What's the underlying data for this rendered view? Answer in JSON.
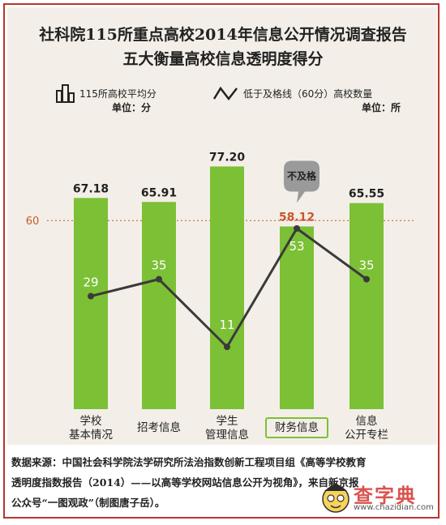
{
  "title_line1": "社科院115所重点高校2014年信息公开情况调查报告",
  "title_line2": "五大衡量高校信息透明度得分",
  "legend": {
    "bar_label": "115所高校平均分",
    "bar_unit": "单位：分",
    "line_label": "低于及格线（60分）高校数量",
    "line_unit": "单位：所",
    "bar_icon": "bar-chart-icon",
    "line_icon": "zigzag-line-icon"
  },
  "threshold_label": "60",
  "callout_text": "不及格",
  "colors": {
    "bar": "#7cc036",
    "line": "#3a3a3a",
    "threshold": "#c9572c",
    "border": "#b9342f",
    "callout": "#9a9a9a"
  },
  "chart_data": {
    "type": "bar",
    "categories": [
      "学校基本情况",
      "招考信息",
      "学生管理信息",
      "财务信息",
      "信息公开专栏"
    ],
    "category_lines": [
      [
        "学校",
        "基本情况"
      ],
      [
        "招考信息"
      ],
      [
        "学生",
        "管理信息"
      ],
      [
        "财务信息"
      ],
      [
        "信息",
        "公开专栏"
      ]
    ],
    "highlight_category": 3,
    "series": [
      {
        "name": "115所高校平均分",
        "type": "bar",
        "values": [
          67.18,
          65.91,
          77.2,
          58.12,
          65.55
        ],
        "labels": [
          "67.18",
          "65.91",
          "77.20",
          "58.12",
          "65.55"
        ]
      },
      {
        "name": "低于及格线（60分）高校数量",
        "type": "line",
        "values": [
          29,
          35,
          11,
          53,
          35
        ],
        "labels": [
          "29",
          "35",
          "11",
          "53",
          "35"
        ]
      }
    ],
    "threshold": 60
  },
  "footer": {
    "line1": "数据来源：中国社会科学院法学研究所法治指数创新工程项目组《高等学校教育",
    "line2": "透明度指数报告（2014）——以高等学校网站信息公开为视角》，来自新京报",
    "line3": "公众号“一图观政”（制图唐子岳）。"
  },
  "watermark": {
    "text": "查字典",
    "url": "www.chazidian.com"
  }
}
